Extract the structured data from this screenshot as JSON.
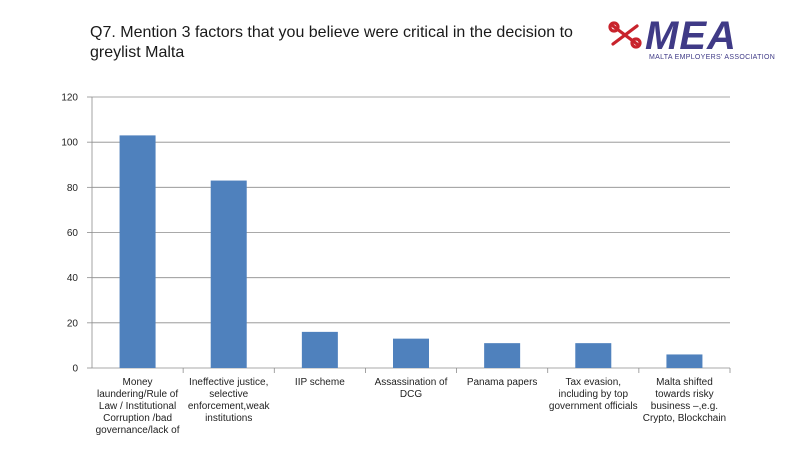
{
  "header": {
    "title": "Q7. Mention 3 factors that you believe were critical in the decision to greylist Malta"
  },
  "logo": {
    "name": "MEA",
    "subtitle": "MALTA EMPLOYERS' ASSOCIATION",
    "brand_color": "#3f3a86",
    "mark_color": "#c8232c"
  },
  "chart_data": {
    "type": "bar",
    "title": "",
    "xlabel": "",
    "ylabel": "",
    "ylim": [
      0,
      120
    ],
    "yticks": [
      0,
      20,
      40,
      60,
      80,
      100,
      120
    ],
    "grid": true,
    "bar_color": "#4f81bd",
    "categories": [
      "Money laundering/Rule of Law / Institutional Corruption /bad governance/lack of",
      "Ineffective justice, selective enforcement,weak institutions",
      "IIP scheme",
      "Assassination of DCG",
      "Panama papers",
      "Tax evasion, including by top government officials",
      "Malta shifted towards risky business –,e.g. Crypto, Blockchain"
    ],
    "values": [
      103,
      83,
      16,
      13,
      11,
      11,
      6
    ]
  }
}
